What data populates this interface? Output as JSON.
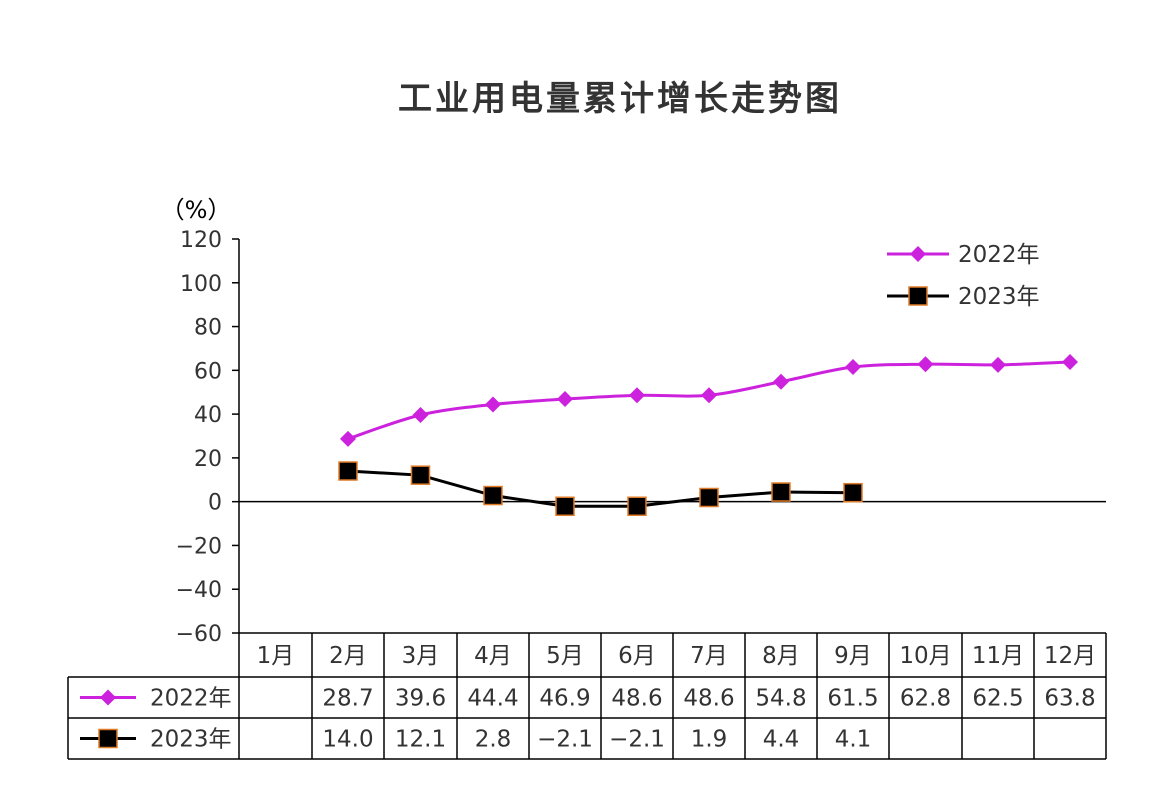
{
  "chart_data": {
    "type": "line",
    "title": "工业用电量累计增长走势图",
    "y_unit": "（%）",
    "ylim": [
      -60,
      120
    ],
    "y_ticks": [
      "120",
      "100",
      "80",
      "60",
      "40",
      "20",
      "0",
      "−20",
      "−40",
      "−60"
    ],
    "y_tick_values": [
      120,
      100,
      80,
      60,
      40,
      20,
      0,
      -20,
      -40,
      -60
    ],
    "categories": [
      "1月",
      "2月",
      "3月",
      "4月",
      "5月",
      "6月",
      "7月",
      "8月",
      "9月",
      "10月",
      "11月",
      "12月"
    ],
    "grid": false,
    "legend_position": "top-right",
    "series": [
      {
        "name": "2022年",
        "color": "#cc22dd",
        "marker": "diamond",
        "values": [
          null,
          28.7,
          39.6,
          44.4,
          46.9,
          48.6,
          48.6,
          54.8,
          61.5,
          62.8,
          62.5,
          63.8
        ],
        "table": [
          "",
          "28.7",
          "39.6",
          "44.4",
          "46.9",
          "48.6",
          "48.6",
          "54.8",
          "61.5",
          "62.8",
          "62.5",
          "63.8"
        ]
      },
      {
        "name": "2023年",
        "color": "#000000",
        "marker": "square",
        "marker_edge": "#e07b28",
        "values": [
          null,
          14.0,
          12.1,
          2.8,
          -2.1,
          -2.1,
          1.9,
          4.4,
          4.1,
          null,
          null,
          null
        ],
        "table": [
          "",
          "14.0",
          "12.1",
          "2.8",
          "−2.1",
          "−2.1",
          "1.9",
          "4.4",
          "4.1",
          "",
          "",
          ""
        ]
      }
    ]
  }
}
